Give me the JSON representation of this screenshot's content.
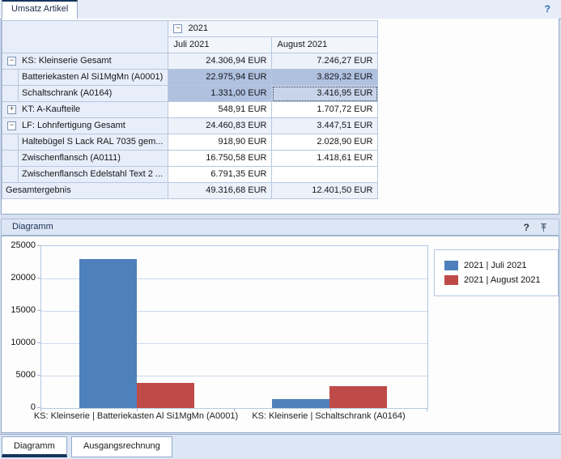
{
  "top_tabs": [
    {
      "label": "Umsatz Artikel",
      "active": true
    }
  ],
  "icons": {
    "help_top": "?",
    "help_diagram": "?",
    "pin": "pin"
  },
  "pivot": {
    "col_group": {
      "label": "2021",
      "expander": "minus"
    },
    "columns": [
      "Juli 2021",
      "August 2021"
    ],
    "rows": [
      {
        "label": "KS: Kleinserie Gesamt",
        "level": 0,
        "expander": "minus",
        "style": "total",
        "values": [
          "24.306,94 EUR",
          "7.246,27 EUR"
        ]
      },
      {
        "label": "Batteriekasten Al Si1MgMn (A0001)",
        "level": 1,
        "style": "detail",
        "values": [
          "22.975,94 EUR",
          "3.829,32 EUR"
        ],
        "selected": [
          true,
          true
        ]
      },
      {
        "label": "Schaltschrank (A0164)",
        "level": 1,
        "style": "detail",
        "values": [
          "1.331,00 EUR",
          "3.416,95 EUR"
        ],
        "selected": [
          true,
          true
        ],
        "focused": 1
      },
      {
        "label": "KT: A-Kaufteile",
        "level": 0,
        "expander": "plus",
        "style": "detail",
        "values": [
          "548,91 EUR",
          "1.707,72 EUR"
        ]
      },
      {
        "label": "LF: Lohnfertigung Gesamt",
        "level": 0,
        "expander": "minus",
        "style": "total",
        "values": [
          "24.460,83 EUR",
          "3.447,51 EUR"
        ]
      },
      {
        "label": "Haltebügel S Lack RAL 7035 gem...",
        "level": 1,
        "style": "detail",
        "values": [
          "918,90 EUR",
          "2.028,90 EUR"
        ]
      },
      {
        "label": "Zwischenflansch (A0111)",
        "level": 1,
        "style": "detail",
        "values": [
          "16.750,58 EUR",
          "1.418,61 EUR"
        ]
      },
      {
        "label": "Zwischenflansch Edelstahl Text 2 ...",
        "level": 1,
        "style": "detail",
        "values": [
          "6.791,35 EUR",
          ""
        ]
      },
      {
        "label": "Gesamtergebnis",
        "level": -1,
        "style": "grand",
        "values": [
          "49.316,68 EUR",
          "12.401,50 EUR"
        ]
      }
    ]
  },
  "diagram_panel": {
    "title": "Diagramm"
  },
  "chart_data": {
    "type": "bar",
    "categories": [
      "KS: Kleinserie | Batteriekasten Al Si1MgMn (A0001)",
      "KS: Kleinserie | Schaltschrank (A0164)"
    ],
    "series": [
      {
        "name": "2021 | Juli 2021",
        "color": "#4e80bc",
        "values": [
          22975.94,
          1331.0
        ]
      },
      {
        "name": "2021 | August 2021",
        "color": "#bf4b48",
        "values": [
          3829.32,
          3416.95
        ]
      }
    ],
    "title": "",
    "xlabel": "",
    "ylabel": "",
    "ylim": [
      0,
      25000
    ],
    "yticks": [
      0,
      5000,
      10000,
      15000,
      20000,
      25000
    ],
    "grid": true,
    "legend_position": "right"
  },
  "bottom_tabs": [
    {
      "label": "Diagramm",
      "active": true
    },
    {
      "label": "Ausgangsrechnung",
      "active": false
    }
  ],
  "colors": {
    "accent_navy": "#16355c",
    "panel_border": "#93a9c9",
    "selection": "#b0c1e0",
    "bar_blue": "#4e80bc",
    "bar_red": "#bf4b48"
  }
}
